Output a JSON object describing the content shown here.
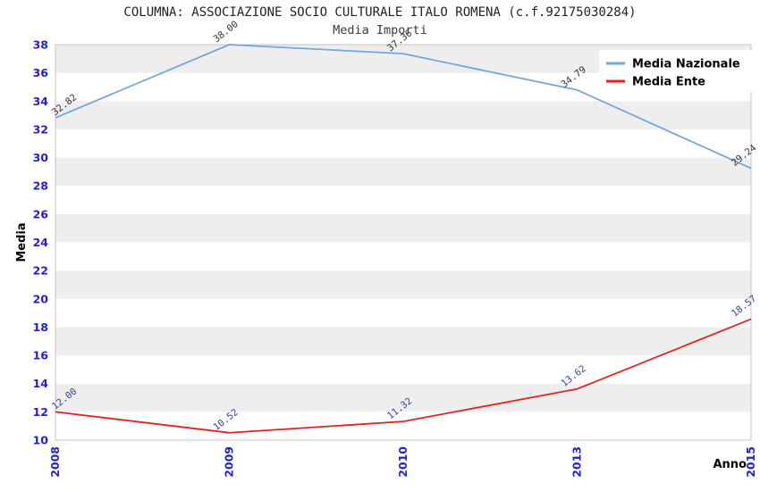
{
  "header": {
    "title": "COLUMNA: ASSOCIAZIONE SOCIO CULTURALE ITALO ROMENA (c.f.92175030284)",
    "subtitle": "Media Importi"
  },
  "chart_data": {
    "type": "line",
    "categories": [
      "2008",
      "2009",
      "2010",
      "2013",
      "2015"
    ],
    "series": [
      {
        "name": "Media Nazionale",
        "color": "#74A7DB",
        "label_color": "#333333",
        "values": [
          32.82,
          38.0,
          37.36,
          34.79,
          29.24
        ]
      },
      {
        "name": "Media Ente",
        "color": "#E62020",
        "label_color": "#334499",
        "values": [
          12.0,
          10.52,
          11.32,
          13.62,
          18.57
        ]
      }
    ],
    "xlabel": "Anno",
    "ylabel": "Media",
    "ylim": [
      10,
      38
    ],
    "ytick_step": 2,
    "value_decimals": 2,
    "legend_position": "top-right",
    "grid": "horizontal-bands",
    "band_colors": [
      "#FFFFFF",
      "#EEEEEE"
    ],
    "frame_color": "#C4C4C4",
    "tick_label_color": "#2222CC",
    "axis_title_color": "#000000"
  }
}
